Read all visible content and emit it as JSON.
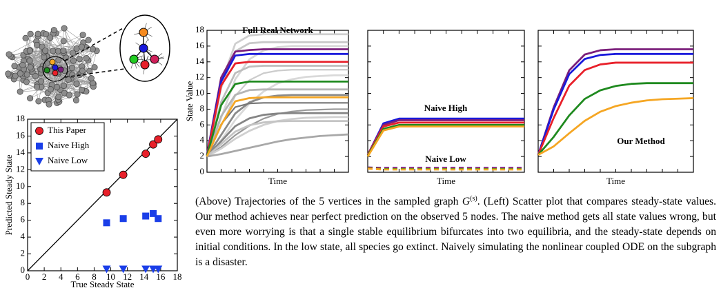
{
  "chart_data": [
    {
      "type": "line",
      "title": "Full Real Network",
      "ylabel": "State Value",
      "xlabel": "Time",
      "ylim": [
        0,
        18
      ],
      "yticks": [
        0,
        2,
        4,
        6,
        8,
        10,
        12,
        14,
        16,
        18
      ],
      "xlim": [
        0,
        10
      ],
      "xticks": [
        0,
        1,
        2,
        3,
        4,
        5,
        6,
        7,
        8,
        9,
        10
      ],
      "ytick_labels": true,
      "x": [
        0,
        1,
        2,
        3,
        4,
        5,
        6,
        7,
        8,
        9,
        10
      ],
      "series": [
        {
          "color": "#cfcfcf",
          "values": [
            2,
            11.3,
            16.3,
            17.35,
            17.5,
            17.5,
            17.5,
            17.5,
            17.5,
            17.5,
            17.5
          ]
        },
        {
          "color": "#c8c8c8",
          "values": [
            2,
            10.7,
            15.34,
            16.36,
            16.5,
            16.5,
            16.5,
            16.5,
            16.5,
            16.5,
            16.5
          ]
        },
        {
          "color": "#d6d6d6",
          "values": [
            2,
            6.9,
            11.8,
            14.32,
            15.44,
            15.86,
            16,
            16,
            16,
            16,
            16
          ]
        },
        {
          "color": "#bdbdbd",
          "values": [
            2,
            8.9,
            12.58,
            13.39,
            13.5,
            13.5,
            13.5,
            13.5,
            13.5,
            13.5,
            13.5
          ]
        },
        {
          "color": "#cccccc",
          "values": [
            2,
            5.85,
            9.7,
            11.68,
            12.56,
            12.89,
            13,
            13,
            13,
            13,
            13
          ]
        },
        {
          "color": "#d9d9d9",
          "values": [
            2,
            4.06,
            6.64,
            8.7,
            10.24,
            11.27,
            11.79,
            12.09,
            12.2,
            12.3,
            12.3
          ]
        },
        {
          "color": "#b5b5b5",
          "values": [
            2,
            7.1,
            9.82,
            10.42,
            10.5,
            10.5,
            10.5,
            10.5,
            10.5,
            10.5,
            10.5
          ]
        },
        {
          "color": "#8a8a8a",
          "values": [
            2,
            4.73,
            7.46,
            8.86,
            9.49,
            9.72,
            9.8,
            9.8,
            9.8,
            9.8,
            9.8
          ]
        },
        {
          "color": "#777777",
          "values": [
            2,
            6.08,
            8.26,
            8.73,
            8.8,
            8.8,
            8.8,
            8.8,
            8.8,
            8.8,
            8.8
          ]
        },
        {
          "color": "#999999",
          "values": [
            2,
            3.2,
            4.7,
            5.9,
            6.8,
            7.4,
            7.7,
            7.88,
            7.94,
            8,
            8
          ]
        },
        {
          "color": "#858585",
          "values": [
            2,
            3.93,
            5.85,
            6.84,
            7.28,
            7.45,
            7.5,
            7.5,
            7.5,
            7.5,
            7.5
          ]
        },
        {
          "color": "#d0d0d0",
          "values": [
            2,
            3,
            4.25,
            5.25,
            6,
            6.5,
            6.75,
            6.9,
            6.95,
            7,
            7
          ]
        },
        {
          "color": "#c4c4c4",
          "values": [
            2,
            3.58,
            5.15,
            5.96,
            6.32,
            6.46,
            6.5,
            6.5,
            6.5,
            6.5,
            6.5
          ]
        },
        {
          "color": "#a8a8a8",
          "values": [
            2,
            2.3,
            2.7,
            3.1,
            3.5,
            3.9,
            4.2,
            4.4,
            4.6,
            4.7,
            4.8
          ]
        },
        {
          "color": "#7b1f7b",
          "values": [
            2.2,
            12,
            15.3,
            15.5,
            15.6,
            15.6,
            15.6,
            15.6,
            15.6,
            15.6,
            15.6
          ]
        },
        {
          "color": "#1a1adb",
          "values": [
            2.2,
            11.5,
            14.8,
            15,
            15,
            15,
            15,
            15,
            15,
            15,
            15
          ]
        },
        {
          "color": "#e8202a",
          "values": [
            2.1,
            11,
            13.8,
            14,
            14,
            14,
            14,
            14,
            14,
            14,
            14
          ]
        },
        {
          "color": "#1f8a1f",
          "values": [
            2.1,
            8.5,
            11.2,
            11.5,
            11.5,
            11.5,
            11.5,
            11.5,
            11.5,
            11.5,
            11.5
          ]
        },
        {
          "color": "#f5a623",
          "values": [
            2,
            6,
            9,
            9.4,
            9.5,
            9.5,
            9.5,
            9.5,
            9.5,
            9.5,
            9.5
          ]
        }
      ]
    },
    {
      "type": "line",
      "xlabel": "Time",
      "annotations": [
        "Naive High",
        "Naive Low"
      ],
      "ylim": [
        0,
        18
      ],
      "yticks": [
        0,
        2,
        4,
        6,
        8,
        10,
        12,
        14,
        16,
        18
      ],
      "xlim": [
        0,
        10
      ],
      "xticks": [
        0,
        1,
        2,
        3,
        4,
        5,
        6,
        7,
        8,
        9,
        10
      ],
      "ytick_labels": false,
      "x": [
        0,
        1,
        2,
        3,
        4,
        5,
        6,
        7,
        8,
        9,
        10
      ],
      "series": [
        {
          "color": "#1a1adb",
          "values": [
            2.2,
            6.2,
            6.8,
            6.8,
            6.8,
            6.8,
            6.8,
            6.8,
            6.8,
            6.8,
            6.8
          ]
        },
        {
          "color": "#7b1f7b",
          "values": [
            2.2,
            6,
            6.6,
            6.6,
            6.6,
            6.6,
            6.6,
            6.6,
            6.6,
            6.6,
            6.6
          ]
        },
        {
          "color": "#e8202a",
          "values": [
            2.2,
            5.8,
            6.3,
            6.3,
            6.3,
            6.3,
            6.3,
            6.3,
            6.3,
            6.3,
            6.3
          ]
        },
        {
          "color": "#1f8a1f",
          "values": [
            2.1,
            5.5,
            6,
            6,
            6,
            6,
            6,
            6,
            6,
            6,
            6
          ]
        },
        {
          "color": "#f5a623",
          "values": [
            2,
            5.3,
            5.8,
            5.8,
            5.8,
            5.8,
            5.8,
            5.8,
            5.8,
            5.8,
            5.8
          ]
        },
        {
          "color": "#1a1adb",
          "dashed": true,
          "values": [
            0.6,
            0.55,
            0.55,
            0.55,
            0.55,
            0.55,
            0.55,
            0.55,
            0.55,
            0.55,
            0.55
          ]
        },
        {
          "color": "#7b1f7b",
          "dashed": true,
          "values": [
            0.6,
            0.5,
            0.5,
            0.5,
            0.5,
            0.5,
            0.5,
            0.5,
            0.5,
            0.5,
            0.5
          ]
        },
        {
          "color": "#e8202a",
          "dashed": true,
          "values": [
            0.55,
            0.45,
            0.45,
            0.45,
            0.45,
            0.45,
            0.45,
            0.45,
            0.45,
            0.45,
            0.45
          ]
        },
        {
          "color": "#1f8a1f",
          "dashed": true,
          "values": [
            0.5,
            0.4,
            0.4,
            0.4,
            0.4,
            0.4,
            0.4,
            0.4,
            0.4,
            0.4,
            0.4
          ]
        },
        {
          "color": "#f5a623",
          "dashed": true,
          "values": [
            0.45,
            0.35,
            0.35,
            0.35,
            0.35,
            0.35,
            0.35,
            0.35,
            0.35,
            0.35,
            0.35
          ]
        }
      ]
    },
    {
      "type": "line",
      "xlabel": "Time",
      "annotations": [
        "Our Method"
      ],
      "ylim": [
        0,
        18
      ],
      "yticks": [
        0,
        2,
        4,
        6,
        8,
        10,
        12,
        14,
        16,
        18
      ],
      "xlim": [
        0,
        10
      ],
      "xticks": [
        0,
        1,
        2,
        3,
        4,
        5,
        6,
        7,
        8,
        9,
        10
      ],
      "ytick_labels": false,
      "x": [
        0,
        1,
        2,
        3,
        4,
        5,
        6,
        7,
        8,
        9,
        10
      ],
      "series": [
        {
          "color": "#7b1f7b",
          "values": [
            2.2,
            8.23,
            12.92,
            14.93,
            15.47,
            15.6,
            15.6,
            15.6,
            15.6,
            15.6,
            15.6
          ]
        },
        {
          "color": "#1a1adb",
          "values": [
            2.2,
            7.96,
            12.44,
            14.36,
            14.87,
            15,
            15,
            15,
            15,
            15,
            15
          ]
        },
        {
          "color": "#e8202a",
          "values": [
            2.2,
            6.88,
            10.98,
            12.96,
            13.67,
            13.9,
            13.9,
            13.9,
            13.9,
            13.9,
            13.9
          ]
        },
        {
          "color": "#1f8a1f",
          "values": [
            2.2,
            4.48,
            7.2,
            9.3,
            10.39,
            10.94,
            11.21,
            11.3,
            11.3,
            11.3,
            11.3
          ]
        },
        {
          "color": "#f5a623",
          "values": [
            2.2,
            3.28,
            4.94,
            6.52,
            7.67,
            8.39,
            8.82,
            9.11,
            9.26,
            9.33,
            9.4
          ]
        }
      ]
    },
    {
      "type": "scatter",
      "xlabel": "True Steady State",
      "ylabel": "Predicted Steady State",
      "xlim": [
        0,
        18
      ],
      "ylim": [
        0,
        18
      ],
      "xticks": [
        0,
        2,
        4,
        6,
        8,
        10,
        12,
        14,
        16,
        18
      ],
      "yticks": [
        0,
        2,
        4,
        6,
        8,
        10,
        12,
        14,
        16,
        18
      ],
      "legend": "upper left",
      "x": [
        9.5,
        11.5,
        14.2,
        15.1,
        15.7
      ],
      "series": [
        {
          "name": "This Paper",
          "color": "#e8202a",
          "marker": "circle",
          "values": [
            9.3,
            11.4,
            13.9,
            15.0,
            15.6
          ]
        },
        {
          "name": "Naive High",
          "color": "#1a3ee8",
          "marker": "square",
          "values": [
            5.7,
            6.2,
            6.5,
            6.8,
            6.2
          ]
        },
        {
          "name": "Naive Low",
          "color": "#1a3ee8",
          "marker": "triangle",
          "values": [
            0.2,
            0.2,
            0.2,
            0.2,
            0.2
          ]
        }
      ]
    }
  ],
  "caption": {
    "before": "(Above) Trajectories of the 5 vertices in the sampled graph ",
    "math": "G",
    "sup": "(s)",
    "after": ". (Left) Scatter plot that compares steady-state values. Our method achieves near perfect prediction on the observed 5 nodes. The naive method gets all state values wrong, but even more worrying is that a single stable equilibrium bifurcates into two equilibria, and the steady-state depends on initial conditions. In the low state, all species go extinct. Naively simulating the nonlinear coupled ODE on the subgraph is a disaster."
  }
}
